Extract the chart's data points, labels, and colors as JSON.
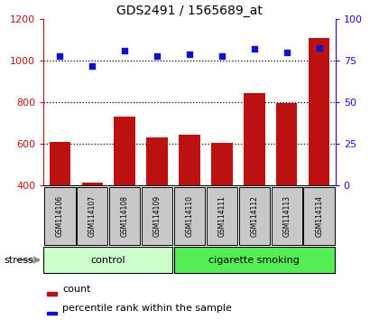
{
  "title": "GDS2491 / 1565689_at",
  "samples": [
    "GSM114106",
    "GSM114107",
    "GSM114108",
    "GSM114109",
    "GSM114110",
    "GSM114111",
    "GSM114112",
    "GSM114113",
    "GSM114114"
  ],
  "counts": [
    610,
    415,
    730,
    630,
    645,
    605,
    845,
    795,
    1110
  ],
  "percentiles": [
    78,
    72,
    81,
    78,
    79,
    78,
    82,
    80,
    83
  ],
  "ylim_left": [
    400,
    1200
  ],
  "ylim_right": [
    0,
    100
  ],
  "yticks_left": [
    400,
    600,
    800,
    1000,
    1200
  ],
  "yticks_right": [
    0,
    25,
    50,
    75,
    100
  ],
  "bar_color": "#bb1111",
  "dot_color": "#1111cc",
  "n_control": 4,
  "n_smoking": 5,
  "control_label": "control",
  "smoking_label": "cigarette smoking",
  "stress_label": "stress",
  "legend_count": "count",
  "legend_percentile": "percentile rank within the sample",
  "bg_color_samples": "#c8c8c8",
  "bg_color_control": "#ccffcc",
  "bg_color_smoking": "#55ee55",
  "dotted_gridlines": [
    600,
    800,
    1000
  ],
  "title_fontsize": 10,
  "tick_fontsize": 8,
  "sample_fontsize": 5.5,
  "group_fontsize": 8,
  "legend_fontsize": 8
}
